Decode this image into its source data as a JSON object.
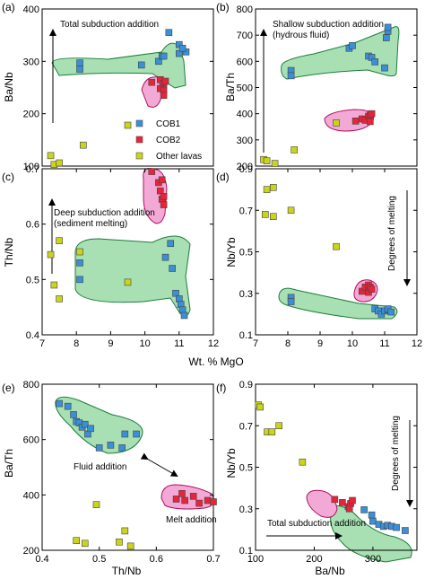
{
  "figure": {
    "shared_xlabel_top": "Wt. % MgO",
    "legend": [
      {
        "name": "COB1",
        "color": "#3a8fd6"
      },
      {
        "name": "COB2",
        "color": "#e8243a"
      },
      {
        "name": "Other lavas",
        "color": "#c9d41a"
      }
    ],
    "colors": {
      "cob1": "#3a8fd6",
      "cob2": "#e8243a",
      "other": "#c9d41a",
      "green_field": "#a8e0b3",
      "pink_field": "#f3a9d6"
    }
  },
  "chart_data": [
    {
      "id": "a",
      "panel_label": "(a)",
      "type": "scatter",
      "xlabel": "",
      "ylabel": "Ba/Nb",
      "xlim": [
        7,
        12
      ],
      "ylim": [
        100,
        400
      ],
      "xticks": [],
      "yticks": [
        100,
        200,
        300,
        400
      ],
      "annotations": [
        {
          "text": "Total subduction addition"
        }
      ],
      "series": [
        {
          "name": "COB1",
          "points": [
            [
              8.1,
              285
            ],
            [
              8.1,
              297
            ],
            [
              9.9,
              293
            ],
            [
              10.4,
              300
            ],
            [
              10.5,
              310
            ],
            [
              10.55,
              310
            ],
            [
              10.7,
              355
            ],
            [
              11.0,
              332
            ],
            [
              11.0,
              315
            ],
            [
              11.2,
              318
            ],
            [
              11.1,
              325
            ]
          ]
        },
        {
          "name": "COB2",
          "points": [
            [
              10.2,
              260
            ],
            [
              10.45,
              265
            ],
            [
              10.55,
              258
            ],
            [
              10.45,
              248
            ],
            [
              10.55,
              245
            ],
            [
              10.55,
              235
            ],
            [
              10.6,
              262
            ]
          ]
        },
        {
          "name": "Other lavas",
          "points": [
            [
              7.25,
              120
            ],
            [
              7.35,
              103
            ],
            [
              7.5,
              106
            ],
            [
              8.2,
              140
            ],
            [
              9.5,
              178
            ]
          ]
        }
      ]
    },
    {
      "id": "b",
      "panel_label": "(b)",
      "type": "scatter",
      "xlabel": "",
      "ylabel": "Ba/Th",
      "xlim": [
        7,
        12
      ],
      "ylim": [
        200,
        800
      ],
      "xticks": [],
      "yticks": [
        200,
        300,
        400,
        500,
        600,
        700,
        800
      ],
      "annotations": [
        {
          "text": "Shallow subduction addition"
        },
        {
          "text": "(hydrous fluid)"
        }
      ],
      "series": [
        {
          "name": "COB1",
          "points": [
            [
              8.1,
              565
            ],
            [
              8.1,
              545
            ],
            [
              9.9,
              650
            ],
            [
              10.0,
              660
            ],
            [
              10.5,
              620
            ],
            [
              10.6,
              615
            ],
            [
              10.7,
              598
            ],
            [
              11.0,
              575
            ],
            [
              11.05,
              690
            ],
            [
              11.1,
              715
            ],
            [
              11.1,
              730
            ]
          ]
        },
        {
          "name": "COB2",
          "points": [
            [
              10.1,
              372
            ],
            [
              10.3,
              380
            ],
            [
              10.4,
              375
            ],
            [
              10.5,
              390
            ],
            [
              10.55,
              370
            ],
            [
              10.55,
              395
            ],
            [
              10.6,
              400
            ]
          ]
        },
        {
          "name": "Other lavas",
          "points": [
            [
              7.25,
              225
            ],
            [
              7.35,
              220
            ],
            [
              7.6,
              210
            ],
            [
              8.2,
              262
            ],
            [
              9.5,
              365
            ]
          ]
        }
      ]
    },
    {
      "id": "c",
      "panel_label": "(c)",
      "type": "scatter",
      "xlabel": "",
      "ylabel": "Th/Nb",
      "xlim": [
        7,
        12
      ],
      "ylim": [
        0.4,
        0.7
      ],
      "xticks": [
        7,
        8,
        9,
        10,
        11,
        12
      ],
      "yticks": [
        0.4,
        0.5,
        0.6,
        0.7
      ],
      "annotations": [
        {
          "text": "Deep subduction addition"
        },
        {
          "text": "(sediment melting)"
        }
      ],
      "series": [
        {
          "name": "COB1",
          "points": [
            [
              8.1,
              0.53
            ],
            [
              8.1,
              0.5
            ],
            [
              10.6,
              0.54
            ],
            [
              10.75,
              0.565
            ],
            [
              10.8,
              0.52
            ],
            [
              10.9,
              0.475
            ],
            [
              11.0,
              0.465
            ],
            [
              11.05,
              0.455
            ],
            [
              11.1,
              0.445
            ],
            [
              11.15,
              0.435
            ]
          ]
        },
        {
          "name": "COB2",
          "points": [
            [
              10.2,
              0.695
            ],
            [
              10.4,
              0.675
            ],
            [
              10.45,
              0.66
            ],
            [
              10.5,
              0.645
            ],
            [
              10.55,
              0.65
            ],
            [
              10.55,
              0.635
            ],
            [
              10.5,
              0.68
            ]
          ]
        },
        {
          "name": "Other lavas",
          "points": [
            [
              7.25,
              0.545
            ],
            [
              7.35,
              0.49
            ],
            [
              7.5,
              0.57
            ],
            [
              7.5,
              0.465
            ],
            [
              8.1,
              0.55
            ],
            [
              9.5,
              0.495
            ]
          ]
        }
      ]
    },
    {
      "id": "d",
      "panel_label": "(d)",
      "type": "scatter",
      "xlabel": "",
      "ylabel": "Nb/Yb",
      "xlim": [
        7,
        12
      ],
      "ylim": [
        0.1,
        0.9
      ],
      "xticks": [
        7,
        8,
        9,
        10,
        11,
        12
      ],
      "yticks": [
        0.1,
        0.3,
        0.5,
        0.7,
        0.9
      ],
      "annotations": [
        {
          "text": "Degrees of melting"
        }
      ],
      "series": [
        {
          "name": "COB1",
          "points": [
            [
              8.1,
              0.28
            ],
            [
              8.1,
              0.26
            ],
            [
              10.7,
              0.225
            ],
            [
              10.8,
              0.215
            ],
            [
              10.9,
              0.2
            ],
            [
              11.0,
              0.215
            ],
            [
              11.1,
              0.22
            ],
            [
              11.1,
              0.225
            ],
            [
              11.2,
              0.21
            ]
          ]
        },
        {
          "name": "COB2",
          "points": [
            [
              10.3,
              0.31
            ],
            [
              10.4,
              0.33
            ],
            [
              10.5,
              0.34
            ],
            [
              10.5,
              0.305
            ],
            [
              10.55,
              0.33
            ],
            [
              10.6,
              0.32
            ]
          ]
        },
        {
          "name": "Other lavas",
          "points": [
            [
              7.3,
              0.68
            ],
            [
              7.35,
              0.8
            ],
            [
              7.55,
              0.81
            ],
            [
              7.55,
              0.67
            ],
            [
              8.1,
              0.7
            ],
            [
              9.5,
              0.525
            ]
          ]
        }
      ]
    },
    {
      "id": "e",
      "panel_label": "(e)",
      "type": "scatter",
      "xlabel": "Th/Nb",
      "ylabel": "Ba/Th",
      "xlim": [
        0.4,
        0.7
      ],
      "ylim": [
        200,
        800
      ],
      "xticks": [
        0.4,
        0.5,
        0.6,
        0.7
      ],
      "yticks": [
        200,
        400,
        600,
        800
      ],
      "annotations": [
        {
          "text": "Fluid addition"
        },
        {
          "text": "Melt addition"
        }
      ],
      "series": [
        {
          "name": "COB1",
          "points": [
            [
              0.43,
              730
            ],
            [
              0.445,
              720
            ],
            [
              0.455,
              690
            ],
            [
              0.46,
              665
            ],
            [
              0.465,
              660
            ],
            [
              0.47,
              645
            ],
            [
              0.475,
              655
            ],
            [
              0.48,
              620
            ],
            [
              0.485,
              640
            ],
            [
              0.5,
              570
            ],
            [
              0.52,
              580
            ],
            [
              0.545,
              620
            ],
            [
              0.54,
              570
            ],
            [
              0.565,
              620
            ]
          ]
        },
        {
          "name": "COB2",
          "points": [
            [
              0.635,
              385
            ],
            [
              0.645,
              405
            ],
            [
              0.65,
              380
            ],
            [
              0.665,
              395
            ],
            [
              0.675,
              370
            ],
            [
              0.69,
              380
            ],
            [
              0.7,
              375
            ]
          ]
        },
        {
          "name": "Other lavas",
          "points": [
            [
              0.46,
              235
            ],
            [
              0.475,
              225
            ],
            [
              0.495,
              365
            ],
            [
              0.535,
              230
            ],
            [
              0.545,
              270
            ],
            [
              0.555,
              215
            ]
          ]
        }
      ]
    },
    {
      "id": "f",
      "panel_label": "(f)",
      "type": "scatter",
      "xlabel": "Ba/Nb",
      "ylabel": "Nb/Yb",
      "xlim": [
        100,
        375
      ],
      "ylim": [
        0.1,
        0.9
      ],
      "xticks": [
        100,
        200,
        300
      ],
      "yticks": [
        0.1,
        0.3,
        0.5,
        0.7,
        0.9
      ],
      "annotations": [
        {
          "text": "Total subduction addition"
        },
        {
          "text": "Degrees of melting"
        }
      ],
      "series": [
        {
          "name": "COB1",
          "points": [
            [
              285,
              0.295
            ],
            [
              298,
              0.27
            ],
            [
              300,
              0.24
            ],
            [
              310,
              0.225
            ],
            [
              318,
              0.215
            ],
            [
              325,
              0.22
            ],
            [
              332,
              0.215
            ],
            [
              340,
              0.21
            ],
            [
              355,
              0.195
            ]
          ]
        },
        {
          "name": "COB2",
          "points": [
            [
              235,
              0.345
            ],
            [
              248,
              0.33
            ],
            [
              258,
              0.31
            ],
            [
              262,
              0.325
            ],
            [
              265,
              0.34
            ],
            [
              260,
              0.3
            ]
          ]
        },
        {
          "name": "Other lavas",
          "points": [
            [
              105,
              0.8
            ],
            [
              108,
              0.79
            ],
            [
              120,
              0.67
            ],
            [
              128,
              0.67
            ],
            [
              140,
              0.7
            ],
            [
              180,
              0.525
            ]
          ]
        }
      ]
    }
  ]
}
